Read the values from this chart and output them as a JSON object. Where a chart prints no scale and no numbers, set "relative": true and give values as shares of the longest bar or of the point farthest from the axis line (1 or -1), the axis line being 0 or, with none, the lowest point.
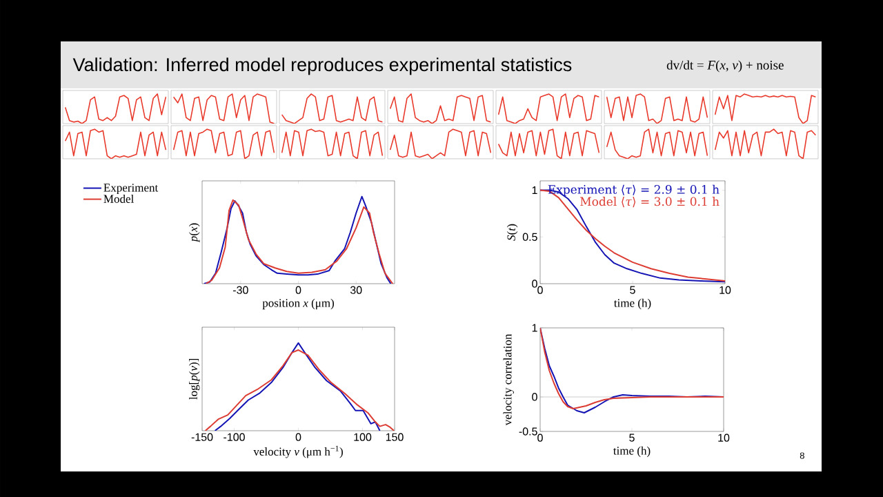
{
  "chart_data": [
    {
      "type": "line",
      "relative": true,
      "title": "Validation: Inferred model reproduces experimental statistics",
      "annotations": [
        "dv/dt = *F*(*x*, *v*) + noise"
      ],
      "categories": [
        null,
        null,
        null,
        null,
        null,
        null,
        null,
        null,
        null,
        null,
        null,
        null,
        null,
        null,
        null,
        null,
        null,
        null,
        null,
        null,
        null,
        null,
        null,
        null,
        null
      ],
      "series": [
        {
          "color": "#e8392b",
          "values": [
            0.55,
            0.1,
            0.05,
            0.08,
            0,
            0.1,
            0.8,
            0.9,
            0.15,
            0.1,
            0.2,
            0.1,
            0.25,
            0.9,
            0.95,
            0.85,
            0.1,
            0.8,
            0.9,
            0.2,
            0.1,
            0.85,
            1,
            0.3,
            0.9
          ]
        }
      ]
    },
    {
      "type": "line",
      "relative": true,
      "categories": [
        null,
        null,
        null,
        null,
        null,
        null,
        null,
        null,
        null,
        null,
        null,
        null,
        null,
        null,
        null,
        null,
        null,
        null,
        null,
        null,
        null,
        null,
        null,
        null,
        null
      ],
      "series": [
        {
          "color": "#e8392b",
          "values": [
            0.9,
            0.7,
            1,
            0.2,
            0.1,
            0.85,
            0.9,
            0.1,
            0.8,
            0.95,
            0.9,
            0.15,
            0.1,
            0.9,
            1,
            0.2,
            0.8,
            0.95,
            0.1,
            0.9,
            1,
            0.95,
            0.9,
            0.05,
            0
          ]
        }
      ]
    },
    {
      "type": "line",
      "relative": true,
      "categories": [
        null,
        null,
        null,
        null,
        null,
        null,
        null,
        null,
        null,
        null,
        null,
        null,
        null,
        null,
        null,
        null,
        null,
        null,
        null,
        null,
        null,
        null,
        null,
        null,
        null
      ],
      "series": [
        {
          "color": "#e8392b",
          "values": [
            0.3,
            0.1,
            0.05,
            0,
            0.1,
            0.2,
            0.85,
            1,
            0.9,
            0.1,
            0.15,
            0.9,
            0.95,
            0.1,
            0.05,
            0.1,
            0.15,
            0.1,
            0.9,
            0.2,
            0.1,
            0.8,
            0.9,
            0.1,
            0.05
          ]
        }
      ]
    },
    {
      "type": "line",
      "relative": true,
      "categories": [
        null,
        null,
        null,
        null,
        null,
        null,
        null,
        null,
        null,
        null,
        null,
        null,
        null,
        null,
        null,
        null,
        null,
        null,
        null,
        null,
        null,
        null,
        null,
        null,
        null
      ],
      "series": [
        {
          "color": "#e8392b",
          "values": [
            0.5,
            0.9,
            0.1,
            0.05,
            0.85,
            1,
            0.2,
            0.1,
            0.05,
            0.1,
            0,
            0.1,
            0.6,
            0.1,
            0.15,
            0.1,
            0.9,
            0.95,
            0.9,
            0.85,
            0.1,
            0.9,
            0.95,
            0.1,
            0.05
          ]
        }
      ]
    },
    {
      "type": "line",
      "relative": true,
      "categories": [
        null,
        null,
        null,
        null,
        null,
        null,
        null,
        null,
        null,
        null,
        null,
        null,
        null,
        null,
        null,
        null,
        null,
        null,
        null,
        null,
        null,
        null,
        null,
        null,
        null
      ],
      "series": [
        {
          "color": "#e8392b",
          "values": [
            0.3,
            0.9,
            0.1,
            0.05,
            0,
            0.1,
            0.15,
            0.5,
            0.2,
            0.1,
            0.9,
            0.95,
            1,
            0.9,
            0.1,
            0.9,
            1,
            0.2,
            0.85,
            0.95,
            0.9,
            0.1,
            0.15,
            0.95,
            0.9
          ]
        }
      ]
    },
    {
      "type": "line",
      "relative": true,
      "categories": [
        null,
        null,
        null,
        null,
        null,
        null,
        null,
        null,
        null,
        null,
        null,
        null,
        null,
        null,
        null,
        null,
        null,
        null,
        null,
        null,
        null,
        null,
        null,
        null,
        null
      ],
      "series": [
        {
          "color": "#e8392b",
          "values": [
            0.9,
            0.2,
            0.85,
            0.9,
            0.1,
            0.9,
            0.2,
            0.95,
            1,
            0.9,
            0.1,
            0.15,
            0,
            0.1,
            0.85,
            0.9,
            0.1,
            0.15,
            0.1,
            0.9,
            0.1,
            0.05,
            0.15,
            0.9,
            0.2
          ]
        }
      ]
    },
    {
      "type": "line",
      "relative": true,
      "categories": [
        null,
        null,
        null,
        null,
        null,
        null,
        null,
        null,
        null,
        null,
        null,
        null,
        null,
        null,
        null,
        null,
        null,
        null,
        null,
        null,
        null,
        null,
        null,
        null,
        null
      ],
      "series": [
        {
          "color": "#e8392b",
          "values": [
            0.3,
            0.9,
            0.5,
            0.95,
            0.1,
            0.95,
            0.9,
            1,
            0.95,
            0.9,
            0.92,
            0.9,
            0.95,
            0.9,
            0.93,
            0.9,
            0.95,
            0.9,
            0.92,
            0.9,
            0.2,
            0,
            0.1,
            0.95,
            0.9
          ]
        }
      ]
    },
    {
      "type": "line",
      "relative": true,
      "categories": [
        null,
        null,
        null,
        null,
        null,
        null,
        null,
        null,
        null,
        null,
        null,
        null,
        null,
        null,
        null,
        null,
        null,
        null,
        null,
        null,
        null,
        null,
        null,
        null,
        null
      ],
      "series": [
        {
          "color": "#e8392b",
          "values": [
            0.6,
            0.9,
            0.1,
            0.85,
            0.9,
            0.1,
            0.95,
            1,
            0.9,
            0.95,
            0.1,
            0,
            0.1,
            0.05,
            0.1,
            0.05,
            0.1,
            0.15,
            0.9,
            0.1,
            0.8,
            0.9,
            0.1,
            0.9,
            0.3
          ]
        }
      ]
    },
    {
      "type": "line",
      "relative": true,
      "categories": [
        null,
        null,
        null,
        null,
        null,
        null,
        null,
        null,
        null,
        null,
        null,
        null,
        null,
        null,
        null,
        null,
        null,
        null,
        null,
        null,
        null,
        null,
        null,
        null,
        null
      ],
      "series": [
        {
          "color": "#e8392b",
          "values": [
            0.3,
            0.9,
            0.95,
            0.1,
            0.9,
            0.1,
            0.85,
            0.9,
            1,
            0.95,
            0.2,
            0.85,
            0.9,
            0.1,
            0.15,
            0.9,
            0.95,
            0,
            0.1,
            0.8,
            0.9,
            0.1,
            0.9,
            0.95,
            0.2
          ]
        }
      ]
    },
    {
      "type": "line",
      "relative": true,
      "categories": [
        null,
        null,
        null,
        null,
        null,
        null,
        null,
        null,
        null,
        null,
        null,
        null,
        null,
        null,
        null,
        null,
        null,
        null,
        null,
        null,
        null,
        null,
        null,
        null,
        null
      ],
      "series": [
        {
          "color": "#e8392b",
          "values": [
            0.2,
            0.9,
            0.1,
            0.95,
            0.9,
            0.1,
            0.95,
            1,
            0.92,
            0.95,
            0.9,
            0.1,
            0.15,
            0.9,
            0.1,
            0.85,
            0.9,
            0.1,
            0,
            0.9,
            0.95,
            0.1,
            0.8,
            0.9,
            0.1
          ]
        }
      ]
    },
    {
      "type": "line",
      "relative": true,
      "categories": [
        null,
        null,
        null,
        null,
        null,
        null,
        null,
        null,
        null,
        null,
        null,
        null,
        null,
        null,
        null,
        null,
        null,
        null,
        null,
        null,
        null,
        null,
        null,
        null,
        null
      ],
      "series": [
        {
          "color": "#e8392b",
          "values": [
            0.3,
            0.8,
            0.1,
            0.05,
            0.1,
            0.9,
            0.1,
            0.05,
            0.1,
            0.15,
            0,
            0.1,
            0.2,
            0.1,
            0.9,
            1,
            0.95,
            0.9,
            0.1,
            0.9,
            0.95,
            0.1,
            0.9,
            0.85,
            0.2
          ]
        }
      ]
    },
    {
      "type": "line",
      "relative": true,
      "categories": [
        null,
        null,
        null,
        null,
        null,
        null,
        null,
        null,
        null,
        null,
        null,
        null,
        null,
        null,
        null,
        null,
        null,
        null,
        null,
        null,
        null,
        null,
        null,
        null,
        null
      ],
      "series": [
        {
          "color": "#e8392b",
          "values": [
            0.5,
            0.2,
            0.1,
            0.9,
            0.1,
            0.85,
            0.2,
            0.9,
            0.95,
            0.1,
            0.9,
            0.15,
            0.95,
            1,
            0.1,
            0,
            0.9,
            0.1,
            0.85,
            0.9,
            0.1,
            0.95,
            0.9,
            0.85,
            0.2
          ]
        }
      ]
    },
    {
      "type": "line",
      "relative": true,
      "categories": [
        null,
        null,
        null,
        null,
        null,
        null,
        null,
        null,
        null,
        null,
        null,
        null,
        null,
        null,
        null,
        null,
        null,
        null,
        null,
        null,
        null,
        null,
        null,
        null,
        null
      ],
      "series": [
        {
          "color": "#e8392b",
          "values": [
            0.4,
            0.9,
            0.3,
            0.1,
            0.05,
            0,
            0.1,
            0.05,
            0.1,
            0.9,
            1,
            0.2,
            0.9,
            0.1,
            0.85,
            0.9,
            0.1,
            0.95,
            0.9,
            0.2,
            0.9,
            0.1,
            0.85,
            0.9,
            0.1
          ]
        }
      ]
    },
    {
      "type": "line",
      "relative": true,
      "categories": [
        null,
        null,
        null,
        null,
        null,
        null,
        null,
        null,
        null,
        null,
        null,
        null,
        null,
        null,
        null,
        null,
        null,
        null,
        null,
        null,
        null,
        null,
        null,
        null,
        null
      ],
      "series": [
        {
          "color": "#e8392b",
          "values": [
            0.3,
            0.9,
            0.7,
            0.95,
            0.1,
            0.9,
            0.1,
            0.95,
            0.2,
            0.8,
            0.9,
            0.1,
            0.9,
            0.9,
            1,
            0.85,
            0.9,
            0.1,
            0.95,
            0.9,
            0.1,
            0,
            0.9,
            0.95,
            0.8
          ]
        }
      ]
    },
    {
      "type": "line",
      "relative": true,
      "xlabel": "position *x* (μm)",
      "ylabel": "*p*(*x*)",
      "xlim": [
        -50,
        50
      ],
      "xticks": [
        -30,
        0,
        30
      ],
      "legend": "left",
      "series": [
        {
          "name": "Experiment",
          "color": "#1414b4",
          "x": [
            -49,
            -46,
            -43,
            -40,
            -37,
            -35,
            -33,
            -31,
            -29,
            -27,
            -25,
            -22,
            -18,
            -14,
            -11,
            -6,
            0,
            5,
            10,
            16,
            19,
            24,
            27,
            30,
            33,
            35,
            38,
            40,
            43,
            46,
            48
          ],
          "values": [
            0,
            0.02,
            0.12,
            0.37,
            0.64,
            0.86,
            0.95,
            0.89,
            0.81,
            0.59,
            0.45,
            0.32,
            0.22,
            0.16,
            0.12,
            0.11,
            0.1,
            0.1,
            0.11,
            0.15,
            0.26,
            0.4,
            0.59,
            0.81,
            1,
            0.89,
            0.7,
            0.51,
            0.23,
            0.07,
            0
          ]
        },
        {
          "name": "Model",
          "color": "#dc3c32",
          "x": [
            -48,
            -45,
            -41,
            -38,
            -36,
            -34,
            -31,
            -29,
            -26,
            -22,
            -18,
            -12,
            -6,
            0,
            7,
            14,
            20,
            25,
            30,
            34,
            37,
            39,
            42,
            45,
            49
          ],
          "values": [
            0,
            0.04,
            0.18,
            0.42,
            0.84,
            0.96,
            0.9,
            0.75,
            0.51,
            0.34,
            0.23,
            0.18,
            0.14,
            0.12,
            0.13,
            0.16,
            0.26,
            0.4,
            0.64,
            0.88,
            0.81,
            0.59,
            0.34,
            0.12,
            0
          ]
        }
      ]
    },
    {
      "type": "line",
      "xlabel": "time (h)",
      "ylabel": "*S*(*t*)",
      "xlim": [
        0,
        10
      ],
      "ylim": [
        0,
        1.1
      ],
      "xticks": [
        0,
        5,
        10
      ],
      "yticks": [
        0,
        0.5,
        1
      ],
      "legend": "top right",
      "series": [
        {
          "name": "Experiment ⟨*τ*⟩ = 2.9 ± 0.1 h",
          "color": "#1414b4",
          "x": [
            0,
            0.5,
            1,
            1.5,
            2,
            2.5,
            3,
            3.5,
            4,
            4.7,
            5.5,
            6.5,
            7.5,
            8.7,
            10
          ],
          "values": [
            1,
            1,
            0.98,
            0.91,
            0.79,
            0.61,
            0.44,
            0.31,
            0.22,
            0.16,
            0.11,
            0.06,
            0.04,
            0.03,
            0.02
          ]
        },
        {
          "name": "Model ⟨*τ*⟩ = 3.0 ± 0.1 h",
          "color": "#dc3c32",
          "x": [
            0,
            0.5,
            1,
            1.5,
            2,
            2.5,
            3,
            3.5,
            4,
            5,
            6,
            7,
            8,
            9,
            10
          ],
          "values": [
            1,
            0.99,
            0.92,
            0.8,
            0.68,
            0.57,
            0.48,
            0.4,
            0.33,
            0.23,
            0.16,
            0.11,
            0.07,
            0.05,
            0.03
          ]
        }
      ]
    },
    {
      "type": "line",
      "relative": true,
      "xlabel": "velocity *v* (μm h$^{−1}$)",
      "ylabel": "log[*p*(*v*)]",
      "xlim": [
        -150,
        150
      ],
      "xticks": [
        -150,
        -100,
        0,
        100,
        150
      ],
      "series": [
        {
          "color": "#1414b4",
          "x": [
            -130,
            -121,
            -107,
            -92,
            -78,
            -60,
            -42,
            -24,
            -10,
            0,
            10,
            26,
            44,
            66,
            80,
            89,
            101,
            113,
            120,
            127
          ],
          "values": [
            0,
            0.05,
            0.14,
            0.25,
            0.35,
            0.43,
            0.55,
            0.72,
            0.89,
            1,
            0.89,
            0.72,
            0.57,
            0.45,
            0.32,
            0.23,
            0.23,
            0.08,
            0.1,
            0
          ]
        },
        {
          "color": "#dc3c32",
          "x": [
            -145,
            -137,
            -125,
            -110,
            -96,
            -82,
            -64,
            -42,
            -24,
            -10,
            0,
            15,
            33,
            51,
            73,
            91,
            109,
            120,
            127,
            136,
            143,
            149
          ],
          "values": [
            0,
            0.05,
            0.13,
            0.18,
            0.29,
            0.4,
            0.47,
            0.58,
            0.74,
            0.89,
            0.92,
            0.86,
            0.69,
            0.55,
            0.42,
            0.3,
            0.2,
            0.1,
            0.05,
            0.07,
            0.04,
            0
          ]
        }
      ]
    },
    {
      "type": "line",
      "xlabel": "time (h)",
      "ylabel": "velocity correlation",
      "xlim": [
        0,
        10
      ],
      "ylim": [
        -0.5,
        1
      ],
      "xticks": [
        0,
        5,
        10
      ],
      "yticks": [
        -0.5,
        0,
        1
      ],
      "annotations": [
        "8"
      ],
      "ref_lines": [
        {
          "axis": "y",
          "value": 0,
          "color": "#a0a0a0"
        }
      ],
      "series": [
        {
          "color": "#1414b4",
          "x": [
            0,
            0.25,
            0.5,
            0.75,
            1,
            1.25,
            1.5,
            2,
            2.4,
            3,
            3.5,
            4,
            4.5,
            5,
            6,
            7,
            8,
            9,
            10
          ],
          "values": [
            1,
            0.7,
            0.45,
            0.3,
            0.13,
            0,
            -0.12,
            -0.2,
            -0.23,
            -0.15,
            -0.07,
            0,
            0.03,
            0.02,
            0.01,
            0.01,
            0,
            0.01,
            0
          ]
        },
        {
          "color": "#dc3c32",
          "x": [
            0,
            0.25,
            0.5,
            0.75,
            1,
            1.25,
            1.5,
            1.8,
            2.5,
            3,
            3.5,
            4,
            5,
            6,
            8,
            10
          ],
          "values": [
            1,
            0.65,
            0.38,
            0.2,
            0.05,
            -0.07,
            -0.14,
            -0.17,
            -0.13,
            -0.08,
            -0.04,
            -0.02,
            -0.01,
            0,
            0,
            0
          ]
        }
      ]
    }
  ]
}
